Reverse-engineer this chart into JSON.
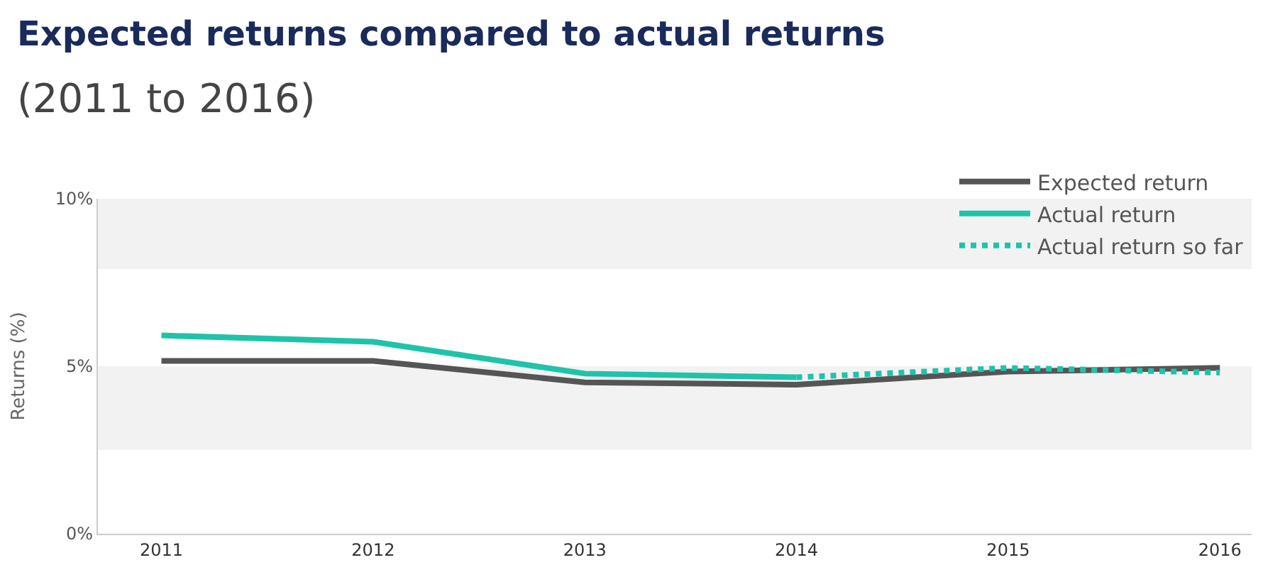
{
  "chart_data": {
    "type": "line",
    "title": "Expected returns compared to actual returns",
    "subtitle": "(2011 to 2016)",
    "ylabel": "Returns (%)",
    "categories": [
      "2011",
      "2012",
      "2013",
      "2014",
      "2015",
      "2016"
    ],
    "series": [
      {
        "name": "Expected return",
        "color": "#555555",
        "values": [
          5.16,
          5.16,
          4.52,
          4.45,
          4.84,
          4.95
        ]
      },
      {
        "name": "Actual return",
        "color": "#1fc3aa",
        "values": [
          5.92,
          5.73,
          4.78,
          4.67,
          null,
          null
        ]
      },
      {
        "name": "Actual return so far",
        "color": "#1fc3aa",
        "line_style": "dotted",
        "values": [
          null,
          null,
          null,
          4.67,
          4.95,
          4.81
        ]
      }
    ],
    "ylim": [
      0,
      10
    ],
    "yticks": [
      {
        "value": 0,
        "label": "0%"
      },
      {
        "value": 5,
        "label": "5%"
      },
      {
        "value": 10,
        "label": "10%"
      }
    ],
    "bands": [
      {
        "axis": "y",
        "from": 7.9,
        "to": 10,
        "color": "#f2f2f2"
      },
      {
        "axis": "y",
        "from": 2.5,
        "to": 5,
        "color": "#f2f2f2"
      }
    ],
    "grid": false,
    "legend": "top right",
    "marker": "none"
  }
}
